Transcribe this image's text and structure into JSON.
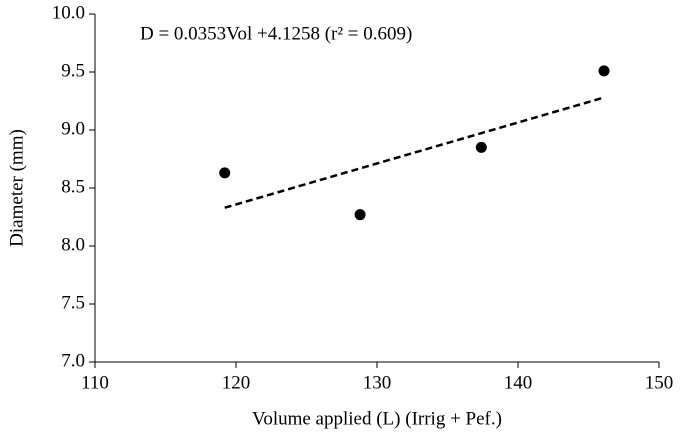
{
  "chart_data": {
    "type": "scatter",
    "annotation": "D = 0.0353Vol +4.1258  (r² = 0.609)",
    "x_label": "Volume applied (L) (Irrig + Pef.)",
    "y_label": "Diameter (mm)",
    "series": [
      {
        "color": "#000000",
        "x": [
          119.2,
          128.8,
          137.4,
          146.1
        ],
        "values": [
          8.63,
          8.27,
          8.85,
          9.51
        ]
      }
    ],
    "trendline": {
      "color": "#000000",
      "x": [
        119.2,
        146.1
      ],
      "values": [
        8.33,
        9.28
      ]
    },
    "xlim": [
      110,
      150
    ],
    "xticks": [
      110,
      120,
      130,
      140,
      150
    ],
    "ylim": [
      7,
      10
    ],
    "yticks": [
      {
        "value": 7,
        "label": "7.0"
      },
      7.5,
      {
        "value": 8,
        "label": "8.0"
      },
      8.5,
      {
        "value": 9,
        "label": "9.0"
      },
      9.5,
      {
        "value": 10,
        "label": "10.0"
      }
    ],
    "grid": false
  }
}
